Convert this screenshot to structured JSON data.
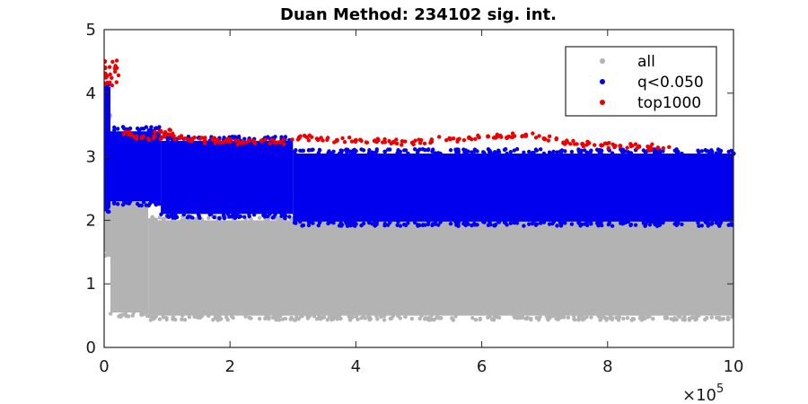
{
  "chart_data": {
    "type": "scatter",
    "title": "Duan Method: 234102 sig. int.",
    "xlabel": "",
    "ylabel": "",
    "xlim": [
      0,
      1000000
    ],
    "ylim": [
      0,
      5
    ],
    "x_ticks": [
      0,
      200000,
      400000,
      600000,
      800000,
      1000000
    ],
    "x_tick_labels": [
      "0",
      "2",
      "4",
      "6",
      "8",
      "10"
    ],
    "x_multiplier": {
      "base": "×10",
      "exponent": "5"
    },
    "y_ticks": [
      0,
      1,
      2,
      3,
      4,
      5
    ],
    "y_tick_labels": [
      "0",
      "1",
      "2",
      "3",
      "4",
      "5"
    ],
    "grid": false,
    "legend_position": "top-right",
    "series": [
      {
        "name": "all",
        "color": "#b3b3b3",
        "description_bands": [
          {
            "x": [
              0,
              10000
            ],
            "y": [
              1.5,
              3.6
            ]
          },
          {
            "x": [
              10000,
              70000
            ],
            "y": [
              0.55,
              2.4
            ]
          },
          {
            "x": [
              70000,
              1000000
            ],
            "y": [
              0.5,
              2.0
            ]
          }
        ]
      },
      {
        "name": "q<0.050",
        "color": "#0000ee",
        "description_bands": [
          {
            "x": [
              0,
              10000
            ],
            "y": [
              2.2,
              4.1
            ]
          },
          {
            "x": [
              10000,
              90000
            ],
            "y": [
              2.3,
              3.4
            ]
          },
          {
            "x": [
              90000,
              300000
            ],
            "y": [
              2.1,
              3.25
            ]
          },
          {
            "x": [
              300000,
              1000000
            ],
            "y": [
              1.98,
              3.05
            ]
          }
        ]
      },
      {
        "name": "top1000",
        "color": "#ee0000",
        "points": [
          [
            1000,
            4.5
          ],
          [
            1500,
            4.4
          ],
          [
            2000,
            4.3
          ],
          [
            2500,
            4.25
          ],
          [
            3000,
            4.15
          ],
          [
            40000,
            3.35
          ],
          [
            60000,
            3.3
          ],
          [
            80000,
            3.32
          ],
          [
            90000,
            3.4
          ],
          [
            100000,
            3.35
          ],
          [
            120000,
            3.3
          ],
          [
            140000,
            3.28
          ],
          [
            160000,
            3.25
          ],
          [
            180000,
            3.26
          ],
          [
            200000,
            3.24
          ],
          [
            220000,
            3.22
          ],
          [
            250000,
            3.25
          ],
          [
            280000,
            3.23
          ],
          [
            310000,
            3.3
          ],
          [
            340000,
            3.27
          ],
          [
            370000,
            3.26
          ],
          [
            400000,
            3.26
          ],
          [
            430000,
            3.25
          ],
          [
            460000,
            3.23
          ],
          [
            490000,
            3.22
          ],
          [
            520000,
            3.24
          ],
          [
            550000,
            3.28
          ],
          [
            580000,
            3.3
          ],
          [
            610000,
            3.32
          ],
          [
            640000,
            3.3
          ],
          [
            670000,
            3.33
          ],
          [
            700000,
            3.28
          ],
          [
            730000,
            3.22
          ],
          [
            760000,
            3.2
          ],
          [
            790000,
            3.18
          ],
          [
            820000,
            3.17
          ],
          [
            850000,
            3.16
          ],
          [
            880000,
            3.14
          ]
        ]
      }
    ],
    "outliers": [
      {
        "series": "q<0.050",
        "x": 1000000,
        "y": 3.05
      }
    ]
  }
}
